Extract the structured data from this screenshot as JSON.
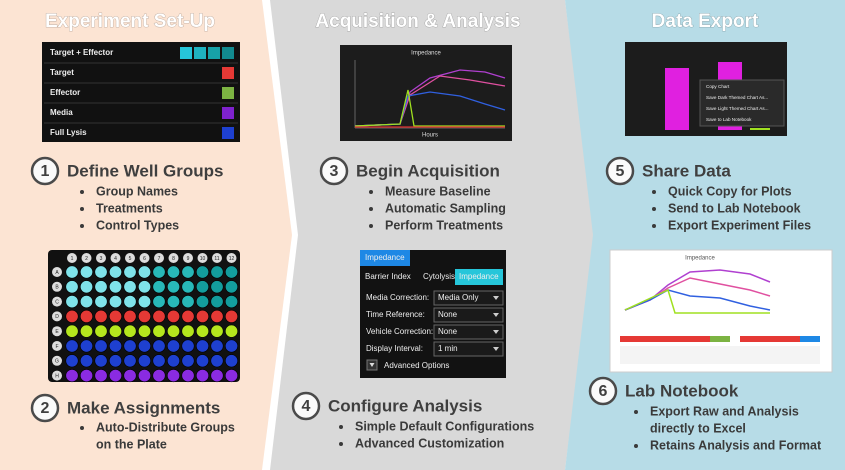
{
  "panels": [
    {
      "title": "Experiment Set-Up",
      "groups": [
        "Target + Effector",
        "Target",
        "Effector",
        "Media",
        "Full Lysis"
      ],
      "plate": {
        "columns": [
          "1",
          "2",
          "3",
          "4",
          "5",
          "6",
          "7",
          "8",
          "9",
          "10",
          "11",
          "12"
        ],
        "rows": [
          "A",
          "B",
          "C",
          "D",
          "E",
          "F",
          "G",
          "H"
        ]
      },
      "steps": [
        {
          "number": "1",
          "title": "Define Well Groups",
          "bullets": [
            [
              "Group Names"
            ],
            [
              "Treatments"
            ],
            [
              "Control Types"
            ]
          ]
        },
        {
          "number": "2",
          "title": "Make Assignments",
          "bullets": [
            [
              "Auto-Distribute Groups",
              "on the Plate"
            ]
          ]
        }
      ]
    },
    {
      "title": "Acquisition & Analysis",
      "chart": {
        "title": "Impedance",
        "xlabel": "Hours"
      },
      "settings": {
        "header": "Impedance",
        "tabs": [
          "Barrier Index",
          "Cytolysis",
          "Impedance"
        ],
        "rows": [
          {
            "label": "Media Correction:",
            "value": "Media Only"
          },
          {
            "label": "Time Reference:",
            "value": "None"
          },
          {
            "label": "Vehicle Correction:",
            "value": "None"
          },
          {
            "label": "Display Interval:",
            "value": "1 min"
          }
        ],
        "advanced": "Advanced Options"
      },
      "steps": [
        {
          "number": "3",
          "title": "Begin Acquisition",
          "bullets": [
            [
              "Measure Baseline"
            ],
            [
              "Automatic Sampling"
            ],
            [
              "Perform Treatments"
            ]
          ]
        },
        {
          "number": "4",
          "title": "Configure Analysis",
          "bullets": [
            [
              "Simple Default Configurations"
            ],
            [
              "Advanced Customization"
            ]
          ]
        }
      ]
    },
    {
      "title": "Data Export",
      "menu": [
        "Copy Chart",
        "Save Dark Themed Chart As...",
        "Save Light Themed Chart As...",
        "Save to Lab Notebook"
      ],
      "excel": {
        "title": "Impedance"
      },
      "steps": [
        {
          "number": "5",
          "title": "Share Data",
          "bullets": [
            [
              "Quick Copy for Plots"
            ],
            [
              "Send to Lab Notebook"
            ],
            [
              "Export Experiment Files"
            ]
          ]
        },
        {
          "number": "6",
          "title": "Lab Notebook",
          "bullets": [
            [
              "Export Raw and Analysis",
              "directly to Excel"
            ],
            [
              "Retains Analysis and Format"
            ]
          ]
        }
      ]
    }
  ]
}
